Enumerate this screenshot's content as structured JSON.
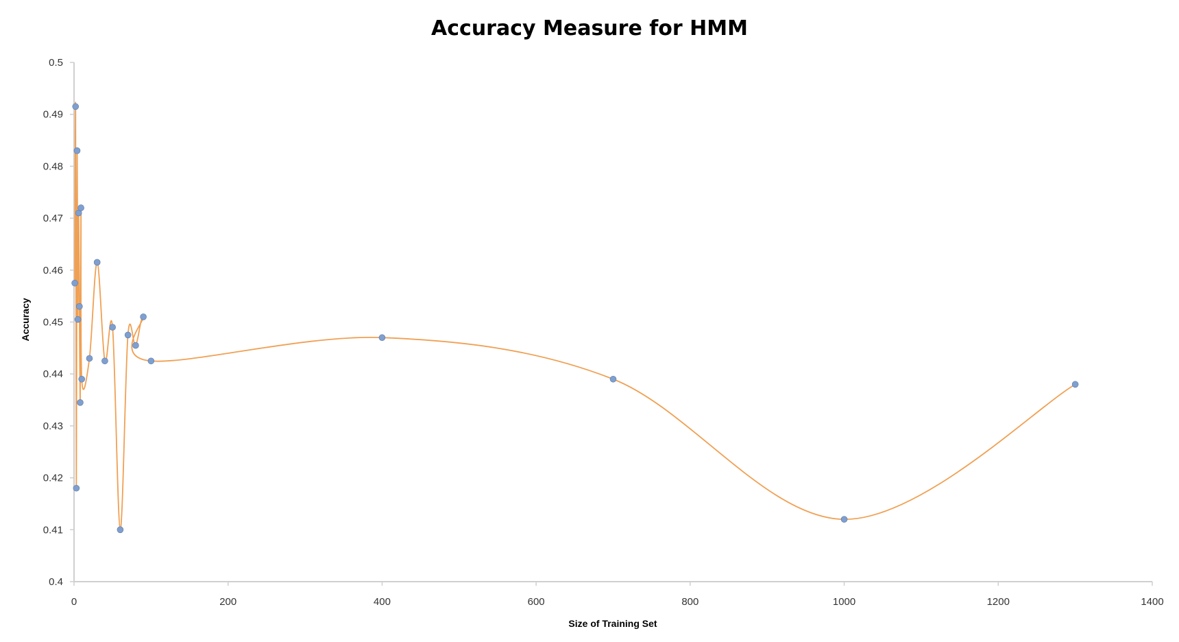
{
  "chart_data": {
    "type": "scatter",
    "title": "Accuracy Measure for HMM",
    "xlabel": "Size of Training Set",
    "ylabel": "Accuracy",
    "xlim": [
      0,
      1400
    ],
    "ylim": [
      0.4,
      0.5
    ],
    "x_ticks": [
      0,
      200,
      400,
      600,
      800,
      1000,
      1200,
      1400
    ],
    "y_ticks": [
      0.4,
      0.41,
      0.42,
      0.43,
      0.44,
      0.45,
      0.46,
      0.47,
      0.48,
      0.49,
      0.5
    ],
    "x_tick_labels": [
      "0",
      "200",
      "400",
      "600",
      "800",
      "1000",
      "1200",
      "1400"
    ],
    "y_tick_labels": [
      "0.4",
      "0.41",
      "0.42",
      "0.43",
      "0.44",
      "0.45",
      "0.46",
      "0.47",
      "0.48",
      "0.49",
      "0.5"
    ],
    "grid": false,
    "smoothed": true,
    "line_color": "#f0a053",
    "marker_color": "#7f9fcf",
    "marker_edge_color": "#5a7aa8",
    "series": [
      {
        "x": [
          1,
          2,
          3,
          4,
          5,
          6,
          7,
          8,
          9,
          10,
          20,
          30,
          40,
          50,
          60,
          70,
          80,
          90,
          100,
          400,
          700,
          1000,
          1300
        ],
        "y": [
          0.4575,
          0.4915,
          0.418,
          0.483,
          0.4505,
          0.471,
          0.453,
          0.4345,
          0.472,
          0.439,
          0.443,
          0.4615,
          0.4425,
          0.449,
          0.41,
          0.4475,
          0.4455,
          0.451,
          0.4425,
          0.447,
          0.439,
          0.412,
          0.438
        ]
      }
    ]
  }
}
